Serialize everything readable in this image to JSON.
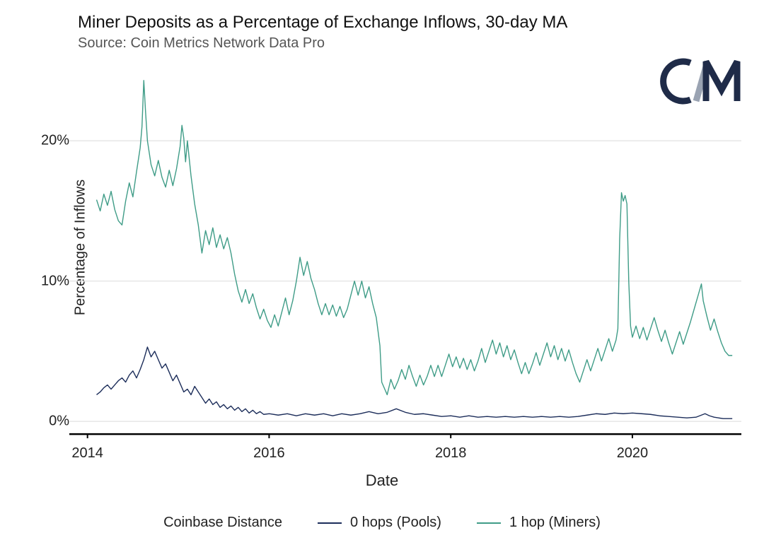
{
  "chart": {
    "type": "line",
    "title": "Miner Deposits as a Percentage of Exchange Inflows, 30-day MA",
    "subtitle": "Source: Coin Metrics Network Data Pro",
    "xlabel": "Date",
    "ylabel": "Percentage of Inflows",
    "legend_title": "Coinbase Distance",
    "background_color": "#ffffff",
    "grid_color": "#e6e6e6",
    "axis_color": "#000000",
    "text_color": "#1a1a1a",
    "title_fontsize": 24,
    "subtitle_fontsize": 20,
    "label_fontsize": 20,
    "tick_fontsize": 20,
    "line_width": 1.4,
    "x": {
      "min": 2013.8,
      "max": 2021.2,
      "ticks": [
        2014,
        2016,
        2018,
        2020
      ]
    },
    "y": {
      "min": -1.2,
      "max": 25.5,
      "ticks": [
        0,
        10,
        20
      ],
      "tick_labels": [
        "0%",
        "10%",
        "20%"
      ]
    },
    "logo": {
      "c_color": "#1f2b48",
      "slash_color": "#9aa3b2"
    },
    "series": [
      {
        "name": "0 hops (Pools)",
        "color": "#1c2d5a",
        "data": [
          [
            2014.1,
            1.9
          ],
          [
            2014.14,
            2.1
          ],
          [
            2014.18,
            2.4
          ],
          [
            2014.22,
            2.6
          ],
          [
            2014.26,
            2.3
          ],
          [
            2014.3,
            2.6
          ],
          [
            2014.34,
            2.9
          ],
          [
            2014.38,
            3.1
          ],
          [
            2014.42,
            2.8
          ],
          [
            2014.46,
            3.3
          ],
          [
            2014.5,
            3.6
          ],
          [
            2014.54,
            3.1
          ],
          [
            2014.58,
            3.7
          ],
          [
            2014.62,
            4.4
          ],
          [
            2014.66,
            5.3
          ],
          [
            2014.7,
            4.6
          ],
          [
            2014.74,
            5.0
          ],
          [
            2014.78,
            4.4
          ],
          [
            2014.82,
            3.8
          ],
          [
            2014.86,
            4.1
          ],
          [
            2014.9,
            3.5
          ],
          [
            2014.94,
            2.9
          ],
          [
            2014.98,
            3.3
          ],
          [
            2015.02,
            2.7
          ],
          [
            2015.06,
            2.1
          ],
          [
            2015.1,
            2.3
          ],
          [
            2015.14,
            1.9
          ],
          [
            2015.18,
            2.5
          ],
          [
            2015.22,
            2.1
          ],
          [
            2015.26,
            1.7
          ],
          [
            2015.3,
            1.3
          ],
          [
            2015.34,
            1.6
          ],
          [
            2015.38,
            1.2
          ],
          [
            2015.42,
            1.4
          ],
          [
            2015.46,
            1.0
          ],
          [
            2015.5,
            1.2
          ],
          [
            2015.54,
            0.9
          ],
          [
            2015.58,
            1.1
          ],
          [
            2015.62,
            0.8
          ],
          [
            2015.66,
            1.0
          ],
          [
            2015.7,
            0.7
          ],
          [
            2015.74,
            0.9
          ],
          [
            2015.78,
            0.6
          ],
          [
            2015.82,
            0.8
          ],
          [
            2015.86,
            0.55
          ],
          [
            2015.9,
            0.7
          ],
          [
            2015.94,
            0.5
          ],
          [
            2016.0,
            0.55
          ],
          [
            2016.1,
            0.45
          ],
          [
            2016.2,
            0.55
          ],
          [
            2016.3,
            0.4
          ],
          [
            2016.4,
            0.55
          ],
          [
            2016.5,
            0.45
          ],
          [
            2016.6,
            0.55
          ],
          [
            2016.7,
            0.4
          ],
          [
            2016.8,
            0.55
          ],
          [
            2016.9,
            0.45
          ],
          [
            2017.0,
            0.55
          ],
          [
            2017.1,
            0.7
          ],
          [
            2017.2,
            0.55
          ],
          [
            2017.3,
            0.65
          ],
          [
            2017.4,
            0.9
          ],
          [
            2017.5,
            0.65
          ],
          [
            2017.6,
            0.5
          ],
          [
            2017.7,
            0.55
          ],
          [
            2017.8,
            0.45
          ],
          [
            2017.9,
            0.35
          ],
          [
            2018.0,
            0.4
          ],
          [
            2018.1,
            0.3
          ],
          [
            2018.2,
            0.4
          ],
          [
            2018.3,
            0.3
          ],
          [
            2018.4,
            0.35
          ],
          [
            2018.5,
            0.3
          ],
          [
            2018.6,
            0.35
          ],
          [
            2018.7,
            0.3
          ],
          [
            2018.8,
            0.35
          ],
          [
            2018.9,
            0.3
          ],
          [
            2019.0,
            0.35
          ],
          [
            2019.1,
            0.3
          ],
          [
            2019.2,
            0.35
          ],
          [
            2019.3,
            0.3
          ],
          [
            2019.4,
            0.35
          ],
          [
            2019.5,
            0.45
          ],
          [
            2019.6,
            0.55
          ],
          [
            2019.7,
            0.5
          ],
          [
            2019.8,
            0.6
          ],
          [
            2019.9,
            0.55
          ],
          [
            2020.0,
            0.6
          ],
          [
            2020.1,
            0.55
          ],
          [
            2020.2,
            0.5
          ],
          [
            2020.3,
            0.4
          ],
          [
            2020.4,
            0.35
          ],
          [
            2020.5,
            0.3
          ],
          [
            2020.6,
            0.25
          ],
          [
            2020.7,
            0.3
          ],
          [
            2020.8,
            0.55
          ],
          [
            2020.85,
            0.4
          ],
          [
            2020.9,
            0.3
          ],
          [
            2020.95,
            0.25
          ],
          [
            2021.0,
            0.2
          ],
          [
            2021.1,
            0.2
          ]
        ]
      },
      {
        "name": "1 hop (Miners)",
        "color": "#3f9c87",
        "data": [
          [
            2014.1,
            15.8
          ],
          [
            2014.14,
            15.0
          ],
          [
            2014.18,
            16.2
          ],
          [
            2014.22,
            15.4
          ],
          [
            2014.26,
            16.4
          ],
          [
            2014.3,
            15.1
          ],
          [
            2014.34,
            14.3
          ],
          [
            2014.38,
            14.0
          ],
          [
            2014.42,
            15.7
          ],
          [
            2014.46,
            17.0
          ],
          [
            2014.5,
            16.0
          ],
          [
            2014.54,
            17.8
          ],
          [
            2014.58,
            19.5
          ],
          [
            2014.6,
            21.0
          ],
          [
            2014.62,
            24.3
          ],
          [
            2014.64,
            22.0
          ],
          [
            2014.66,
            20.0
          ],
          [
            2014.7,
            18.3
          ],
          [
            2014.74,
            17.5
          ],
          [
            2014.78,
            18.6
          ],
          [
            2014.82,
            17.4
          ],
          [
            2014.86,
            16.7
          ],
          [
            2014.9,
            17.9
          ],
          [
            2014.94,
            16.8
          ],
          [
            2014.98,
            18.0
          ],
          [
            2015.02,
            19.6
          ],
          [
            2015.04,
            21.1
          ],
          [
            2015.06,
            20.2
          ],
          [
            2015.08,
            18.5
          ],
          [
            2015.1,
            20.0
          ],
          [
            2015.14,
            17.5
          ],
          [
            2015.18,
            15.5
          ],
          [
            2015.22,
            14.0
          ],
          [
            2015.26,
            12.0
          ],
          [
            2015.3,
            13.6
          ],
          [
            2015.34,
            12.6
          ],
          [
            2015.38,
            13.8
          ],
          [
            2015.42,
            12.4
          ],
          [
            2015.46,
            13.3
          ],
          [
            2015.5,
            12.3
          ],
          [
            2015.54,
            13.1
          ],
          [
            2015.58,
            12.0
          ],
          [
            2015.62,
            10.5
          ],
          [
            2015.66,
            9.3
          ],
          [
            2015.7,
            8.5
          ],
          [
            2015.74,
            9.4
          ],
          [
            2015.78,
            8.4
          ],
          [
            2015.82,
            9.1
          ],
          [
            2015.86,
            8.1
          ],
          [
            2015.9,
            7.3
          ],
          [
            2015.94,
            8.0
          ],
          [
            2015.98,
            7.2
          ],
          [
            2016.02,
            6.7
          ],
          [
            2016.06,
            7.6
          ],
          [
            2016.1,
            6.8
          ],
          [
            2016.14,
            7.8
          ],
          [
            2016.18,
            8.8
          ],
          [
            2016.22,
            7.6
          ],
          [
            2016.26,
            8.6
          ],
          [
            2016.3,
            10.0
          ],
          [
            2016.34,
            11.7
          ],
          [
            2016.38,
            10.4
          ],
          [
            2016.42,
            11.4
          ],
          [
            2016.46,
            10.2
          ],
          [
            2016.5,
            9.4
          ],
          [
            2016.54,
            8.4
          ],
          [
            2016.58,
            7.6
          ],
          [
            2016.62,
            8.4
          ],
          [
            2016.66,
            7.6
          ],
          [
            2016.7,
            8.3
          ],
          [
            2016.74,
            7.5
          ],
          [
            2016.78,
            8.2
          ],
          [
            2016.82,
            7.4
          ],
          [
            2016.86,
            8.0
          ],
          [
            2016.9,
            9.0
          ],
          [
            2016.94,
            10.0
          ],
          [
            2016.98,
            9.0
          ],
          [
            2017.02,
            10.0
          ],
          [
            2017.06,
            8.8
          ],
          [
            2017.1,
            9.6
          ],
          [
            2017.14,
            8.4
          ],
          [
            2017.18,
            7.4
          ],
          [
            2017.22,
            5.4
          ],
          [
            2017.24,
            2.8
          ],
          [
            2017.28,
            2.2
          ],
          [
            2017.3,
            1.9
          ],
          [
            2017.34,
            3.0
          ],
          [
            2017.38,
            2.3
          ],
          [
            2017.42,
            2.9
          ],
          [
            2017.46,
            3.7
          ],
          [
            2017.5,
            3.0
          ],
          [
            2017.54,
            4.0
          ],
          [
            2017.58,
            3.2
          ],
          [
            2017.62,
            2.5
          ],
          [
            2017.66,
            3.3
          ],
          [
            2017.7,
            2.6
          ],
          [
            2017.74,
            3.2
          ],
          [
            2017.78,
            4.0
          ],
          [
            2017.82,
            3.2
          ],
          [
            2017.86,
            4.0
          ],
          [
            2017.9,
            3.2
          ],
          [
            2017.94,
            4.0
          ],
          [
            2017.98,
            4.8
          ],
          [
            2018.02,
            3.9
          ],
          [
            2018.06,
            4.6
          ],
          [
            2018.1,
            3.8
          ],
          [
            2018.14,
            4.5
          ],
          [
            2018.18,
            3.7
          ],
          [
            2018.22,
            4.4
          ],
          [
            2018.26,
            3.6
          ],
          [
            2018.3,
            4.3
          ],
          [
            2018.34,
            5.2
          ],
          [
            2018.38,
            4.2
          ],
          [
            2018.42,
            5.0
          ],
          [
            2018.46,
            5.8
          ],
          [
            2018.5,
            4.8
          ],
          [
            2018.54,
            5.6
          ],
          [
            2018.58,
            4.6
          ],
          [
            2018.62,
            5.4
          ],
          [
            2018.66,
            4.4
          ],
          [
            2018.7,
            5.1
          ],
          [
            2018.74,
            4.2
          ],
          [
            2018.78,
            3.4
          ],
          [
            2018.82,
            4.2
          ],
          [
            2018.86,
            3.4
          ],
          [
            2018.9,
            4.1
          ],
          [
            2018.94,
            4.9
          ],
          [
            2018.98,
            4.0
          ],
          [
            2019.02,
            4.8
          ],
          [
            2019.06,
            5.6
          ],
          [
            2019.1,
            4.6
          ],
          [
            2019.14,
            5.4
          ],
          [
            2019.18,
            4.4
          ],
          [
            2019.22,
            5.2
          ],
          [
            2019.26,
            4.3
          ],
          [
            2019.3,
            5.1
          ],
          [
            2019.34,
            4.2
          ],
          [
            2019.38,
            3.4
          ],
          [
            2019.42,
            2.8
          ],
          [
            2019.46,
            3.6
          ],
          [
            2019.5,
            4.4
          ],
          [
            2019.54,
            3.6
          ],
          [
            2019.58,
            4.4
          ],
          [
            2019.62,
            5.2
          ],
          [
            2019.66,
            4.3
          ],
          [
            2019.7,
            5.1
          ],
          [
            2019.74,
            5.9
          ],
          [
            2019.78,
            5.0
          ],
          [
            2019.82,
            5.8
          ],
          [
            2019.84,
            6.6
          ],
          [
            2019.86,
            13.0
          ],
          [
            2019.88,
            16.3
          ],
          [
            2019.9,
            15.7
          ],
          [
            2019.92,
            16.1
          ],
          [
            2019.94,
            15.5
          ],
          [
            2019.96,
            10.0
          ],
          [
            2019.98,
            6.8
          ],
          [
            2020.0,
            6.0
          ],
          [
            2020.04,
            6.8
          ],
          [
            2020.08,
            5.9
          ],
          [
            2020.12,
            6.7
          ],
          [
            2020.16,
            5.8
          ],
          [
            2020.2,
            6.6
          ],
          [
            2020.24,
            7.4
          ],
          [
            2020.28,
            6.5
          ],
          [
            2020.32,
            5.7
          ],
          [
            2020.36,
            6.5
          ],
          [
            2020.4,
            5.6
          ],
          [
            2020.44,
            4.8
          ],
          [
            2020.48,
            5.6
          ],
          [
            2020.52,
            6.4
          ],
          [
            2020.56,
            5.5
          ],
          [
            2020.6,
            6.3
          ],
          [
            2020.64,
            7.1
          ],
          [
            2020.68,
            8.0
          ],
          [
            2020.72,
            8.9
          ],
          [
            2020.76,
            9.8
          ],
          [
            2020.78,
            8.6
          ],
          [
            2020.82,
            7.5
          ],
          [
            2020.86,
            6.5
          ],
          [
            2020.9,
            7.3
          ],
          [
            2020.94,
            6.4
          ],
          [
            2020.98,
            5.6
          ],
          [
            2021.02,
            5.0
          ],
          [
            2021.06,
            4.7
          ],
          [
            2021.1,
            4.7
          ]
        ]
      }
    ]
  }
}
